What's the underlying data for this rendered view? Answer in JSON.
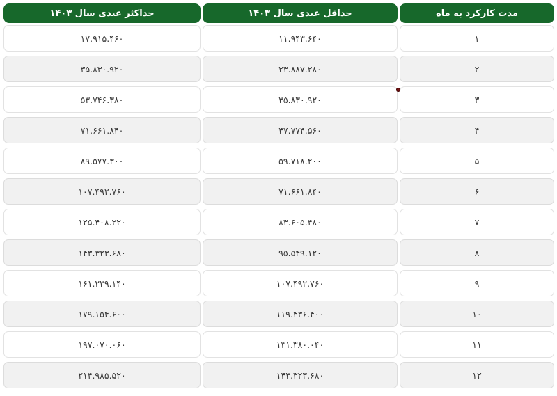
{
  "table": {
    "columns": [
      {
        "key": "month",
        "label": "مدت کارکرد به ماه"
      },
      {
        "key": "min",
        "label": "حداقل عیدی سال ۱۴۰۳"
      },
      {
        "key": "max",
        "label": "حداکثر عیدی سال ۱۴۰۳"
      }
    ],
    "rows": [
      {
        "month": "۱",
        "min": "۱۱.۹۴۳.۶۴۰",
        "max": "۱۷.۹۱۵.۴۶۰"
      },
      {
        "month": "۲",
        "min": "۲۳.۸۸۷.۲۸۰",
        "max": "۳۵.۸۳۰.۹۲۰"
      },
      {
        "month": "۳",
        "min": "۳۵.۸۳۰.۹۲۰",
        "max": "۵۳.۷۴۶.۳۸۰"
      },
      {
        "month": "۴",
        "min": "۴۷.۷۷۴.۵۶۰",
        "max": "۷۱.۶۶۱.۸۴۰"
      },
      {
        "month": "۵",
        "min": "۵۹.۷۱۸.۲۰۰",
        "max": "۸۹.۵۷۷.۳۰۰"
      },
      {
        "month": "۶",
        "min": "۷۱.۶۶۱.۸۴۰",
        "max": "۱۰۷.۴۹۲.۷۶۰"
      },
      {
        "month": "۷",
        "min": "۸۳.۶۰۵.۴۸۰",
        "max": "۱۲۵.۴۰۸.۲۲۰"
      },
      {
        "month": "۸",
        "min": "۹۵.۵۴۹.۱۲۰",
        "max": "۱۴۳.۳۲۳.۶۸۰"
      },
      {
        "month": "۹",
        "min": "۱۰۷.۴۹۲.۷۶۰",
        "max": "۱۶۱.۲۳۹.۱۴۰"
      },
      {
        "month": "۱۰",
        "min": "۱۱۹.۴۳۶.۴۰۰",
        "max": "۱۷۹.۱۵۴.۶۰۰"
      },
      {
        "month": "۱۱",
        "min": "۱۳۱.۳۸۰.۰۴۰",
        "max": "۱۹۷.۰۷۰.۰۶۰"
      },
      {
        "month": "۱۲",
        "min": "۱۴۳.۳۲۳.۶۸۰",
        "max": "۲۱۴.۹۸۵.۵۲۰"
      }
    ]
  },
  "colors": {
    "header_bg": "#17682b",
    "header_text": "#ffffff",
    "row_bg": "#ffffff",
    "row_alt_bg": "#f1f1f1",
    "row_border": "#e2e2e2",
    "cell_text": "#3a3a3a",
    "red_dot": "#7a1414"
  },
  "chart_data": {
    "type": "table",
    "title": "",
    "columns": [
      "مدت کارکرد به ماه",
      "حداقل عیدی سال ۱۴۰۳",
      "حداکثر عیدی سال ۱۴۰۳"
    ],
    "rows_display": [
      [
        "۱",
        "۱۱.۹۴۳.۶۴۰",
        "۱۷.۹۱۵.۴۶۰"
      ],
      [
        "۲",
        "۲۳.۸۸۷.۲۸۰",
        "۳۵.۸۳۰.۹۲۰"
      ],
      [
        "۳",
        "۳۵.۸۳۰.۹۲۰",
        "۵۳.۷۴۶.۳۸۰"
      ],
      [
        "۴",
        "۴۷.۷۷۴.۵۶۰",
        "۷۱.۶۶۱.۸۴۰"
      ],
      [
        "۵",
        "۵۹.۷۱۸.۲۰۰",
        "۸۹.۵۷۷.۳۰۰"
      ],
      [
        "۶",
        "۷۱.۶۶۱.۸۴۰",
        "۱۰۷.۴۹۲.۷۶۰"
      ],
      [
        "۷",
        "۸۳.۶۰۵.۴۸۰",
        "۱۲۵.۴۰۸.۲۲۰"
      ],
      [
        "۸",
        "۹۵.۵۴۹.۱۲۰",
        "۱۴۳.۳۲۳.۶۸۰"
      ],
      [
        "۹",
        "۱۰۷.۴۹۲.۷۶۰",
        "۱۶۱.۲۳۹.۱۴۰"
      ],
      [
        "۱۰",
        "۱۱۹.۴۳۶.۴۰۰",
        "۱۷۹.۱۵۴.۶۰۰"
      ],
      [
        "۱۱",
        "۱۳۱.۳۸۰.۰۴۰",
        "۱۹۷.۰۷۰.۰۶۰"
      ],
      [
        "۱۲",
        "۱۴۳.۳۲۳.۶۸۰",
        "۲۱۴.۹۸۵.۵۲۰"
      ]
    ],
    "rows_numeric": [
      [
        1,
        11943640,
        17915460
      ],
      [
        2,
        23887280,
        35830920
      ],
      [
        3,
        35830920,
        53746380
      ],
      [
        4,
        47774560,
        71661840
      ],
      [
        5,
        59718200,
        89577300
      ],
      [
        6,
        71661840,
        107492760
      ],
      [
        7,
        83605480,
        125408220
      ],
      [
        8,
        95549120,
        143323680
      ],
      [
        9,
        107492760,
        161239140
      ],
      [
        10,
        119436400,
        179154600
      ],
      [
        11,
        131380040,
        197070060
      ],
      [
        12,
        143323680,
        214985520
      ]
    ]
  }
}
